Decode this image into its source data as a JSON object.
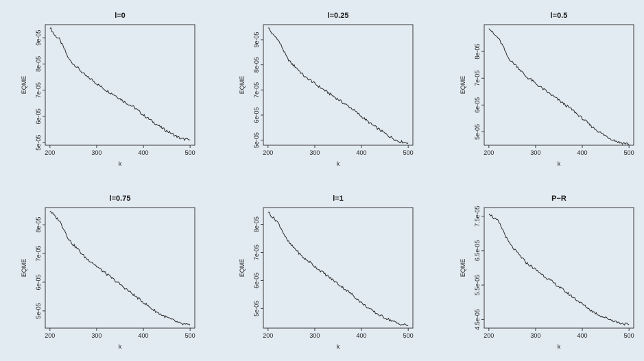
{
  "chart_data": [
    {
      "type": "line",
      "title": "l=0",
      "xlabel": "k",
      "ylabel": "EQME",
      "xlim": [
        190,
        510
      ],
      "ylim": [
        4.9e-05,
        9.5e-05
      ],
      "xticks": [
        200,
        300,
        400,
        500
      ],
      "xtick_labels": [
        "200",
        "300",
        "400",
        "500"
      ],
      "yticks": [
        5e-05,
        6e-05,
        7e-05,
        8e-05,
        9e-05
      ],
      "ytick_labels": [
        "5e-05",
        "6e-05",
        "7e-05",
        "8e-05",
        "9e-05"
      ],
      "series": [
        {
          "x": [
            200,
            210,
            220,
            230,
            240,
            250,
            260,
            270,
            280,
            290,
            300,
            320,
            340,
            360,
            380,
            400,
            420,
            440,
            460,
            480,
            500
          ],
          "y": [
            9.4e-05,
            9.1e-05,
            8.95e-05,
            8.6e-05,
            8.2e-05,
            8e-05,
            7.85e-05,
            7.65e-05,
            7.5e-05,
            7.4e-05,
            7.25e-05,
            7e-05,
            6.8e-05,
            6.55e-05,
            6.35e-05,
            6.05e-05,
            5.8e-05,
            5.55e-05,
            5.35e-05,
            5.15e-05,
            5.1e-05
          ]
        }
      ]
    },
    {
      "type": "line",
      "title": "l=0.25",
      "xlabel": "k",
      "ylabel": "EQME",
      "xlim": [
        190,
        510
      ],
      "ylim": [
        4.8e-05,
        9.6e-05
      ],
      "xticks": [
        200,
        300,
        400,
        500
      ],
      "xtick_labels": [
        "200",
        "300",
        "400",
        "500"
      ],
      "yticks": [
        5e-05,
        6e-05,
        7e-05,
        8e-05,
        9e-05
      ],
      "ytick_labels": [
        "5e-05",
        "6e-05",
        "7e-05",
        "8e-05",
        "9e-05"
      ],
      "series": [
        {
          "x": [
            200,
            210,
            220,
            230,
            240,
            250,
            260,
            270,
            280,
            290,
            300,
            320,
            340,
            360,
            380,
            400,
            420,
            440,
            460,
            480,
            500
          ],
          "y": [
            9.5e-05,
            9.2e-05,
            9.05e-05,
            8.7e-05,
            8.3e-05,
            8.05e-05,
            7.9e-05,
            7.7e-05,
            7.5e-05,
            7.4e-05,
            7.25e-05,
            7e-05,
            6.75e-05,
            6.5e-05,
            6.25e-05,
            5.95e-05,
            5.65e-05,
            5.4e-05,
            5.15e-05,
            4.95e-05,
            4.9e-05
          ]
        }
      ]
    },
    {
      "type": "line",
      "title": "l=0.5",
      "xlabel": "k",
      "ylabel": "EQME",
      "xlim": [
        190,
        510
      ],
      "ylim": [
        4.5e-05,
        9e-05
      ],
      "xticks": [
        200,
        300,
        400,
        500
      ],
      "xtick_labels": [
        "200",
        "300",
        "400",
        "500"
      ],
      "yticks": [
        5e-05,
        6e-05,
        7e-05,
        8e-05
      ],
      "ytick_labels": [
        "5e-05",
        "6e-05",
        "7e-05",
        "8e-05"
      ],
      "series": [
        {
          "x": [
            200,
            210,
            220,
            230,
            240,
            250,
            260,
            270,
            280,
            290,
            300,
            320,
            340,
            360,
            380,
            400,
            420,
            440,
            460,
            480,
            500
          ],
          "y": [
            8.9e-05,
            8.65e-05,
            8.5e-05,
            8.2e-05,
            7.8e-05,
            7.6e-05,
            7.45e-05,
            7.25e-05,
            7.05e-05,
            6.95e-05,
            6.8e-05,
            6.55e-05,
            6.3e-05,
            6.05e-05,
            5.8e-05,
            5.5e-05,
            5.2e-05,
            4.95e-05,
            4.75e-05,
            4.6e-05,
            4.55e-05
          ]
        }
      ]
    },
    {
      "type": "line",
      "title": "l=0.75",
      "xlabel": "k",
      "ylabel": "EQME",
      "xlim": [
        190,
        510
      ],
      "ylim": [
        4.4e-05,
        8.6e-05
      ],
      "xticks": [
        200,
        300,
        400,
        500
      ],
      "xtick_labels": [
        "200",
        "300",
        "400",
        "500"
      ],
      "yticks": [
        5e-05,
        6e-05,
        7e-05,
        8e-05
      ],
      "ytick_labels": [
        "5e-05",
        "6e-05",
        "7e-05",
        "8e-05"
      ],
      "series": [
        {
          "x": [
            200,
            210,
            220,
            230,
            240,
            250,
            260,
            270,
            280,
            290,
            300,
            320,
            340,
            360,
            380,
            400,
            420,
            440,
            460,
            480,
            500
          ],
          "y": [
            8.5e-05,
            8.3e-05,
            8.15e-05,
            7.85e-05,
            7.5e-05,
            7.3e-05,
            7.15e-05,
            6.95e-05,
            6.8e-05,
            6.7e-05,
            6.55e-05,
            6.3e-05,
            6.05e-05,
            5.8e-05,
            5.55e-05,
            5.3e-05,
            5.05e-05,
            4.85e-05,
            4.7e-05,
            4.55e-05,
            4.5e-05
          ]
        }
      ]
    },
    {
      "type": "line",
      "title": "l=1",
      "xlabel": "k",
      "ylabel": "EQME",
      "xlim": [
        190,
        510
      ],
      "ylim": [
        4.3e-05,
        8.6e-05
      ],
      "xticks": [
        200,
        300,
        400,
        500
      ],
      "xtick_labels": [
        "200",
        "300",
        "400",
        "500"
      ],
      "yticks": [
        5e-05,
        6e-05,
        7e-05,
        8e-05
      ],
      "ytick_labels": [
        "5e-05",
        "6e-05",
        "7e-05",
        "8e-05"
      ],
      "series": [
        {
          "x": [
            200,
            210,
            220,
            230,
            240,
            250,
            260,
            270,
            280,
            290,
            300,
            320,
            340,
            360,
            380,
            400,
            420,
            440,
            460,
            480,
            500
          ],
          "y": [
            8.45e-05,
            8.25e-05,
            8.1e-05,
            7.8e-05,
            7.45e-05,
            7.25e-05,
            7.1e-05,
            6.9e-05,
            6.75e-05,
            6.65e-05,
            6.5e-05,
            6.25e-05,
            6e-05,
            5.75e-05,
            5.5e-05,
            5.2e-05,
            4.95e-05,
            4.75e-05,
            4.6e-05,
            4.45e-05,
            4.4e-05
          ]
        }
      ]
    },
    {
      "type": "line",
      "title": "P−R",
      "xlabel": "k",
      "ylabel": "EQME",
      "xlim": [
        190,
        510
      ],
      "ylim": [
        4.25e-05,
        7.75e-05
      ],
      "xticks": [
        200,
        300,
        400,
        500
      ],
      "xtick_labels": [
        "200",
        "300",
        "400",
        "500"
      ],
      "yticks": [
        4.5e-05,
        5.5e-05,
        6.5e-05,
        7.5e-05
      ],
      "ytick_labels": [
        "4.5e-05",
        "5.5e-05",
        "6.5e-05",
        "7.5e-05"
      ],
      "series": [
        {
          "x": [
            200,
            210,
            220,
            230,
            240,
            250,
            260,
            270,
            280,
            290,
            300,
            320,
            340,
            360,
            380,
            400,
            420,
            440,
            460,
            480,
            500
          ],
          "y": [
            7.6e-05,
            7.45e-05,
            7.35e-05,
            7.1e-05,
            6.8e-05,
            6.6e-05,
            6.45e-05,
            6.3e-05,
            6.15e-05,
            6.05e-05,
            5.95e-05,
            5.75e-05,
            5.55e-05,
            5.35e-05,
            5.15e-05,
            4.95e-05,
            4.75e-05,
            4.6e-05,
            4.5e-05,
            4.4e-05,
            4.35e-05
          ]
        }
      ]
    }
  ]
}
